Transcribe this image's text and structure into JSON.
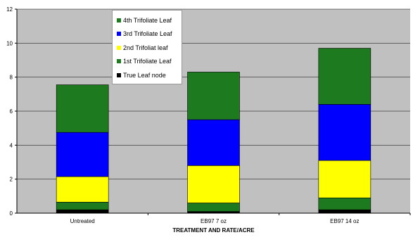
{
  "chart_data": {
    "type": "bar",
    "stacked": true,
    "categories": [
      "Untreated",
      "EB97 7 oz",
      "EB97 14 oz"
    ],
    "series": [
      {
        "name": "True Leaf node",
        "color": "#000000",
        "values": [
          0.2,
          0.1,
          0.2
        ]
      },
      {
        "name": "1st Trifoliate Leaf",
        "color": "#1e7a1e",
        "values": [
          0.45,
          0.5,
          0.7
        ]
      },
      {
        "name": "2nd Trifoliat leaf",
        "color": "#ffff00",
        "values": [
          1.5,
          2.2,
          2.2
        ]
      },
      {
        "name": "3rd Trifoliate Leaf",
        "color": "#0000ff",
        "values": [
          2.6,
          2.7,
          3.3
        ]
      },
      {
        "name": "4th Trifoliate Leaf",
        "color": "#1e7a1e",
        "values": [
          2.8,
          2.8,
          3.3
        ]
      }
    ],
    "xlabel": "TREATMENT AND RATE/ACRE",
    "ylabel": "",
    "ylim": [
      0,
      12
    ],
    "yticks": [
      0,
      2,
      4,
      6,
      8,
      10,
      12
    ],
    "grid": true,
    "legend_position": "top-left",
    "legend_order": [
      "4th Trifoliate Leaf",
      "3rd Trifoliate Leaf",
      "2nd Trifoliat leaf",
      "1st Trifoliate Leaf",
      "True Leaf node"
    ],
    "plot_background": "#c0c0c0"
  }
}
